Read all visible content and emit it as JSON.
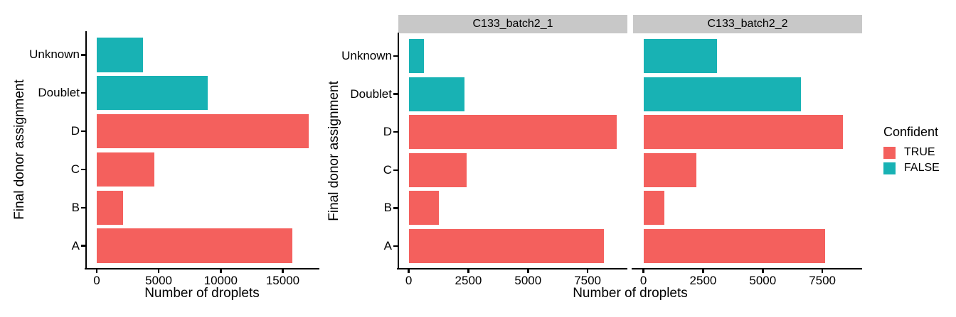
{
  "colors": {
    "confident_true": "#F4605D",
    "confident_false": "#18B2B4",
    "strip_background": "#C8C8C8",
    "axis": "#000000"
  },
  "legend": {
    "title": "Confident",
    "items": [
      {
        "label": "TRUE",
        "color": "#F4605D"
      },
      {
        "label": "FALSE",
        "color": "#18B2B4"
      }
    ]
  },
  "chart_data": [
    {
      "id": "combined",
      "type": "bar",
      "orientation": "horizontal",
      "title": "",
      "xlabel": "Number of droplets",
      "ylabel": "Final donor assignment",
      "categories": [
        "Unknown",
        "Doublet",
        "D",
        "C",
        "B",
        "A"
      ],
      "values": [
        3710,
        8950,
        17100,
        4650,
        2150,
        15800
      ],
      "confident": [
        false,
        false,
        true,
        true,
        true,
        true
      ],
      "x_ticks": [
        0,
        5000,
        10000,
        15000
      ],
      "x_tick_labels": [
        "0",
        "5000",
        "10000",
        "15000"
      ],
      "xlim": [
        0,
        17955
      ],
      "grid": false,
      "legend_position": "none"
    },
    {
      "id": "by-sample",
      "type": "bar",
      "orientation": "horizontal",
      "title": "",
      "xlabel": "Number of droplets",
      "ylabel": "Final donor assignment",
      "categories": [
        "Unknown",
        "Doublet",
        "D",
        "C",
        "B",
        "A"
      ],
      "confident": [
        false,
        false,
        true,
        true,
        true,
        true
      ],
      "facets": [
        {
          "label": "C133_batch2_1",
          "values": [
            630,
            2350,
            8730,
            2420,
            1270,
            8180
          ]
        },
        {
          "label": "C133_batch2_2",
          "values": [
            3080,
            6600,
            8370,
            2230,
            880,
            7620
          ]
        }
      ],
      "x_ticks": [
        0,
        2500,
        5000,
        7500
      ],
      "x_tick_labels": [
        "0",
        "2500",
        "5000",
        "7500"
      ],
      "xlim": [
        0,
        9167
      ],
      "grid": false,
      "legend_position": "right"
    }
  ]
}
